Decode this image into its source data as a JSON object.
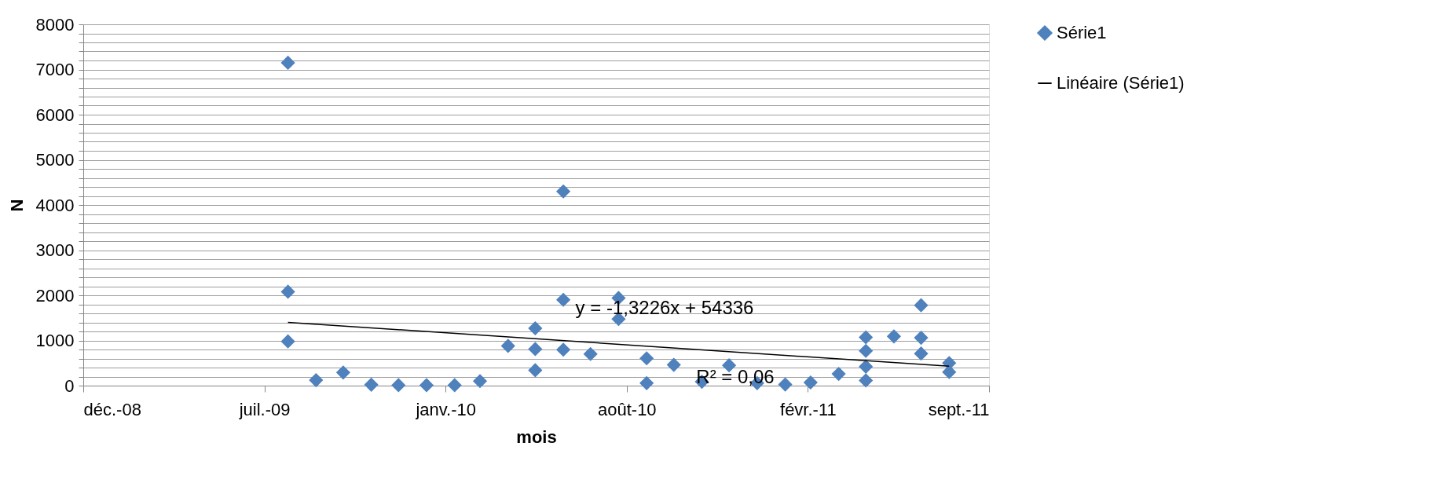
{
  "chart_data": {
    "type": "scatter",
    "xlabel": "mois",
    "ylabel": "N",
    "xlim": [
      "2008-12-18",
      "2011-09-14"
    ],
    "xticks": [
      {
        "value": "2008-12-18",
        "label": "déc.-08"
      },
      {
        "value": "2009-07-06",
        "label": "juil.-09"
      },
      {
        "value": "2010-01-22",
        "label": "janv.-10"
      },
      {
        "value": "2010-08-10",
        "label": "août-10"
      },
      {
        "value": "2011-02-26",
        "label": "févr.-11"
      },
      {
        "value": "2011-09-14",
        "label": "sept.-11"
      }
    ],
    "ylim": [
      0,
      8000
    ],
    "yticks": [
      0,
      {
        "value": 200,
        "label": null
      },
      {
        "value": 400,
        "label": null
      },
      {
        "value": 600,
        "label": null
      },
      {
        "value": 800,
        "label": null
      },
      1000,
      {
        "value": 1200,
        "label": null
      },
      {
        "value": 1400,
        "label": null
      },
      {
        "value": 1600,
        "label": null
      },
      {
        "value": 1800,
        "label": null
      },
      2000,
      {
        "value": 2200,
        "label": null
      },
      {
        "value": 2400,
        "label": null
      },
      {
        "value": 2600,
        "label": null
      },
      {
        "value": 2800,
        "label": null
      },
      3000,
      {
        "value": 3200,
        "label": null
      },
      {
        "value": 3400,
        "label": null
      },
      {
        "value": 3600,
        "label": null
      },
      {
        "value": 3800,
        "label": null
      },
      4000,
      {
        "value": 4200,
        "label": null
      },
      {
        "value": 4400,
        "label": null
      },
      {
        "value": 4600,
        "label": null
      },
      {
        "value": 4800,
        "label": null
      },
      5000,
      {
        "value": 5200,
        "label": null
      },
      {
        "value": 5400,
        "label": null
      },
      {
        "value": 5600,
        "label": null
      },
      {
        "value": 5800,
        "label": null
      },
      6000,
      {
        "value": 6200,
        "label": null
      },
      {
        "value": 6400,
        "label": null
      },
      {
        "value": 6600,
        "label": null
      },
      {
        "value": 6800,
        "label": null
      },
      7000,
      {
        "value": 7200,
        "label": null
      },
      {
        "value": 7400,
        "label": null
      },
      {
        "value": 7600,
        "label": null
      },
      {
        "value": 7800,
        "label": null
      },
      8000
    ],
    "grid": "y",
    "legend": "right",
    "marker": "diamond",
    "series": [
      {
        "name": "Série1",
        "color": "#4f81bd",
        "x": [
          "2009-08-01",
          "2009-08-01",
          "2009-08-01",
          "2009-09-01",
          "2009-10-01",
          "2009-11-01",
          "2009-12-01",
          "2010-01-01",
          "2010-02-01",
          "2010-03-01",
          "2010-04-01",
          "2010-05-01",
          "2010-05-01",
          "2010-05-01",
          "2010-06-01",
          "2010-06-01",
          "2010-06-01",
          "2010-07-01",
          "2010-08-01",
          "2010-08-01",
          "2010-09-01",
          "2010-09-01",
          "2010-10-01",
          "2010-11-01",
          "2010-12-01",
          "2011-01-01",
          "2011-02-01",
          "2011-03-01",
          "2011-04-01",
          "2011-05-01",
          "2011-05-01",
          "2011-05-01",
          "2011-05-01",
          "2011-06-01",
          "2011-07-01",
          "2011-07-01",
          "2011-07-01",
          "2011-08-01",
          "2011-08-01"
        ],
        "values": [
          7150,
          2080,
          980,
          120,
          290,
          20,
          10,
          10,
          10,
          100,
          880,
          1270,
          810,
          340,
          4300,
          1900,
          795,
          700,
          1940,
          1475,
          605,
          55,
          460,
          85,
          450,
          55,
          25,
          70,
          260,
          1070,
          770,
          420,
          115,
          1090,
          1780,
          1060,
          710,
          500,
          300
        ]
      },
      {
        "name": "Linéaire (Série1)",
        "type": "line",
        "color": "#000000",
        "line_style": "solid",
        "marker": "none",
        "x": [
          "2009-08-01",
          "2011-08-01"
        ],
        "values": [
          1400,
          430
        ]
      }
    ],
    "annotations": [
      "y = -1,3226x + 54336",
      "R² = 0,06"
    ]
  }
}
